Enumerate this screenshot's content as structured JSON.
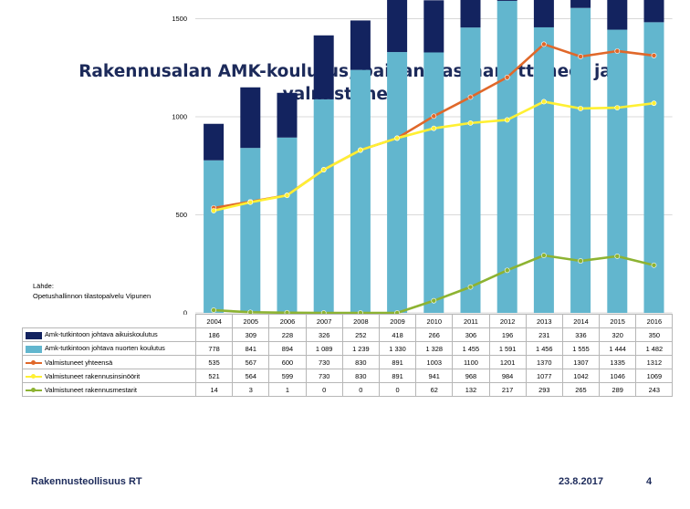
{
  "title": "Rakennusalan AMK-koulutus, paikan vastaanottaneet ja valmistuneet",
  "source_label": "Lähde:",
  "source_text": "Opetushallinnon tilastopalvelu Vipunen",
  "footer": {
    "organization": "Rakennusteollisuus RT",
    "date": "23.8.2017",
    "page": "4"
  },
  "colors": {
    "adult": "#13235f",
    "youth": "#62b6ce",
    "total": "#e0682a",
    "engineers": "#fff033",
    "masters": "#8db332"
  },
  "chart_data": {
    "type": "bar",
    "stacked": true,
    "title": "",
    "xlabel": "",
    "ylabel": "",
    "ylim": [
      0,
      2000
    ],
    "yticks": [
      0,
      500,
      1000,
      1500,
      2000
    ],
    "grid": true,
    "legend": "table-below",
    "categories": [
      "2004",
      "2005",
      "2006",
      "2007",
      "2008",
      "2009",
      "2010",
      "2011",
      "2012",
      "2013",
      "2014",
      "2015",
      "2016"
    ],
    "series": [
      {
        "name": "Amk-tutkintoon johtava aikuiskoulutus",
        "kind": "bar",
        "values": [
          186,
          309,
          228,
          326,
          252,
          418,
          266,
          306,
          196,
          231,
          336,
          320,
          350
        ],
        "labels": [
          "186",
          "309",
          "228",
          "326",
          "252",
          "418",
          "266",
          "306",
          "196",
          "231",
          "336",
          "320",
          "350"
        ]
      },
      {
        "name": "Amk-tutkintoon johtava nuorten koulutus",
        "kind": "bar",
        "values": [
          778,
          841,
          894,
          1089,
          1239,
          1330,
          1328,
          1455,
          1591,
          1456,
          1555,
          1444,
          1482
        ],
        "labels": [
          "778",
          "841",
          "894",
          "1 089",
          "1 239",
          "1 330",
          "1 328",
          "1 455",
          "1 591",
          "1 456",
          "1 555",
          "1 444",
          "1 482"
        ]
      },
      {
        "name": "Valmistuneet yhteensä",
        "kind": "line",
        "values": [
          535,
          567,
          600,
          730,
          830,
          891,
          1003,
          1100,
          1201,
          1370,
          1307,
          1335,
          1312
        ],
        "labels": [
          "535",
          "567",
          "600",
          "730",
          "830",
          "891",
          "1003",
          "1100",
          "1201",
          "1370",
          "1307",
          "1335",
          "1312"
        ]
      },
      {
        "name": "Valmistuneet rakennusinsinöörit",
        "kind": "line",
        "values": [
          521,
          564,
          599,
          730,
          830,
          891,
          941,
          968,
          984,
          1077,
          1042,
          1046,
          1069
        ],
        "labels": [
          "521",
          "564",
          "599",
          "730",
          "830",
          "891",
          "941",
          "968",
          "984",
          "1077",
          "1042",
          "1046",
          "1069"
        ]
      },
      {
        "name": "Valmistuneet rakennusmestarit",
        "kind": "line",
        "values": [
          14,
          3,
          1,
          0,
          0,
          0,
          62,
          132,
          217,
          293,
          265,
          289,
          243
        ],
        "labels": [
          "14",
          "3",
          "1",
          "0",
          "0",
          "0",
          "62",
          "132",
          "217",
          "293",
          "265",
          "289",
          "243"
        ]
      }
    ]
  }
}
